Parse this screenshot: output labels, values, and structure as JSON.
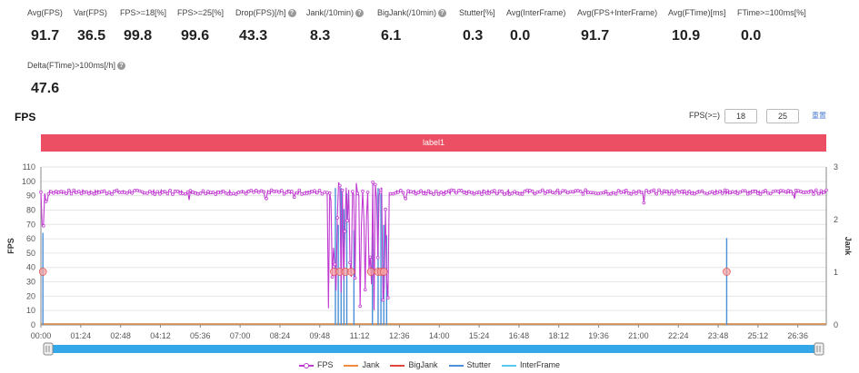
{
  "metrics_row1": [
    {
      "label": "Avg(FPS)",
      "value": "91.7",
      "help": false
    },
    {
      "label": "Var(FPS)",
      "value": "36.5",
      "help": false
    },
    {
      "label": "FPS>=18[%]",
      "value": "99.8",
      "help": false
    },
    {
      "label": "FPS>=25[%]",
      "value": "99.6",
      "help": false
    },
    {
      "label": "Drop(FPS)[/h]",
      "value": "43.3",
      "help": true
    },
    {
      "label": "Jank(/10min)",
      "value": "8.3",
      "help": true
    },
    {
      "label": "BigJank(/10min)",
      "value": "6.1",
      "help": true
    },
    {
      "label": "Stutter[%]",
      "value": "0.3",
      "help": false
    },
    {
      "label": "Avg(InterFrame)",
      "value": "0.0",
      "help": false
    },
    {
      "label": "Avg(FPS+InterFrame)",
      "value": "91.7",
      "help": false
    },
    {
      "label": "Avg(FTime)[ms]",
      "value": "10.9",
      "help": false
    },
    {
      "label": "FTime>=100ms[%]",
      "value": "0.0",
      "help": false
    }
  ],
  "metrics_row2": [
    {
      "label": "Delta(FTime)>100ms[/h]",
      "value": "47.6",
      "help": true
    }
  ],
  "help_glyph": "?",
  "chart_title": "FPS",
  "controls": {
    "label": "FPS(>=)",
    "input1": "18",
    "input2": "25",
    "reset": "重置"
  },
  "label_bar": "label1",
  "chart_data": {
    "type": "line",
    "y_left": {
      "label": "FPS",
      "range": [
        0,
        110
      ],
      "ticks": [
        "0",
        "10",
        "20",
        "30",
        "40",
        "50",
        "60",
        "70",
        "80",
        "90",
        "100",
        "110"
      ]
    },
    "y_right": {
      "label": "Jank",
      "range": [
        0,
        3
      ],
      "ticks": [
        "0",
        "1",
        "2",
        "3"
      ]
    },
    "x_ticks": [
      "00:00",
      "01:24",
      "02:48",
      "04:12",
      "05:36",
      "07:00",
      "08:24",
      "09:48",
      "11:12",
      "12:36",
      "14:00",
      "15:24",
      "16:48",
      "18:12",
      "19:36",
      "21:00",
      "22:24",
      "23:48",
      "25:12",
      "26:36"
    ],
    "x_range_minutes": [
      0,
      27.6
    ],
    "series": [
      {
        "name": "FPS",
        "color": "#c03ad1",
        "baseline": 92.5,
        "dips": [
          [
            0.07,
            69
          ],
          [
            0.2,
            86
          ],
          [
            5.2,
            87
          ],
          [
            7.9,
            88
          ],
          [
            8.9,
            89
          ],
          [
            12.8,
            88
          ],
          [
            21.2,
            85
          ],
          [
            26.5,
            88
          ]
        ],
        "unstable_region": [
          10.1,
          12.2
        ]
      },
      {
        "name": "Jank",
        "color": "#f08a3c",
        "values": "0 throughout"
      },
      {
        "name": "BigJank",
        "color": "#e2453c",
        "values": "0 throughout"
      },
      {
        "name": "Stutter",
        "color": "#4a90d9",
        "spikes_jank": [
          [
            0.07,
            1.75
          ],
          [
            10.35,
            2.6
          ],
          [
            10.45,
            1.9
          ],
          [
            10.55,
            2.6
          ],
          [
            10.65,
            2.2
          ],
          [
            10.75,
            2.5
          ],
          [
            11.0,
            1.8
          ],
          [
            11.65,
            1.75
          ],
          [
            11.85,
            2.6
          ],
          [
            11.95,
            2.5
          ],
          [
            12.05,
            1.9
          ],
          [
            12.15,
            1.7
          ],
          [
            24.1,
            1.65
          ]
        ]
      },
      {
        "name": "InterFrame",
        "color": "#5bc8ef",
        "values": "0 throughout"
      }
    ],
    "jank_markers_fps": [
      [
        0.07,
        37
      ],
      [
        10.3,
        37
      ],
      [
        10.5,
        37
      ],
      [
        10.7,
        37
      ],
      [
        10.9,
        37
      ],
      [
        11.6,
        37
      ],
      [
        11.85,
        37
      ],
      [
        11.95,
        37
      ],
      [
        12.05,
        37
      ],
      [
        24.1,
        37
      ]
    ],
    "legend": [
      "FPS",
      "Jank",
      "BigJank",
      "Stutter",
      "InterFrame"
    ]
  }
}
